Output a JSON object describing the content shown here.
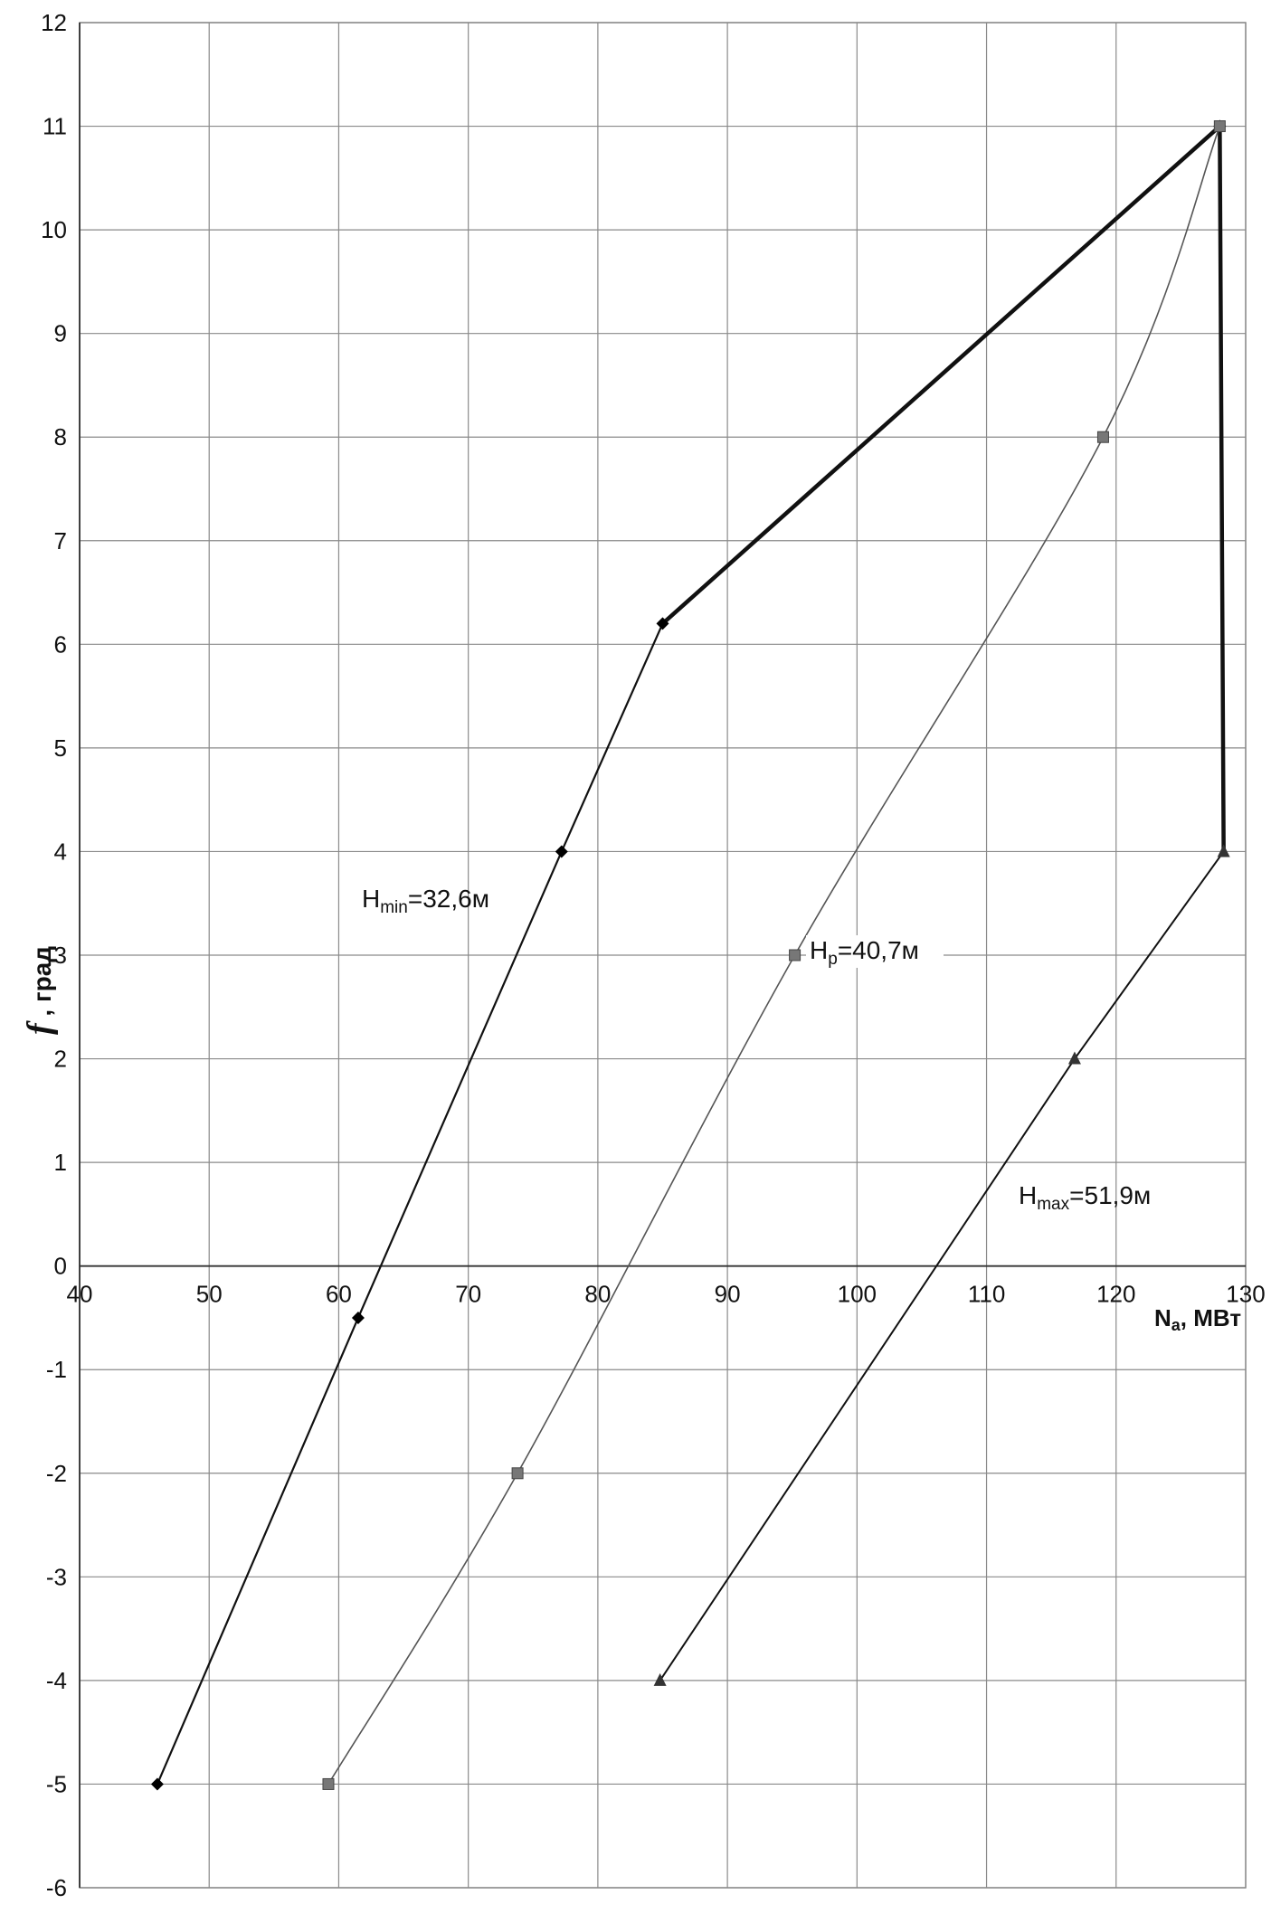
{
  "chart_data": {
    "type": "line",
    "title": "",
    "xlabel": {
      "main": "N",
      "sub": "a",
      "rest": ", МВт"
    },
    "ylabel": {
      "main": "f",
      "rest": " , град"
    },
    "xlim": [
      40,
      130
    ],
    "ylim": [
      -6,
      12
    ],
    "xticks": [
      40,
      50,
      60,
      70,
      80,
      90,
      100,
      110,
      120,
      130
    ],
    "yticks": [
      -6,
      -5,
      -4,
      -3,
      -2,
      -1,
      0,
      1,
      2,
      3,
      4,
      5,
      6,
      7,
      8,
      9,
      10,
      11,
      12
    ],
    "grid": true,
    "legend": "none",
    "series": [
      {
        "name": "Hmin=32,6м",
        "label": {
          "main": "H",
          "sub": "min",
          "rest": "=32,6м"
        },
        "marker": "diamond",
        "points": [
          [
            46.0,
            -5.0
          ],
          [
            61.5,
            -0.5
          ],
          [
            77.2,
            4.0
          ],
          [
            85.0,
            6.2
          ],
          [
            128.0,
            11.0
          ]
        ]
      },
      {
        "name": "Hp=40,7м",
        "label": {
          "main": "H",
          "sub": "p",
          "rest": "=40,7м"
        },
        "marker": "square",
        "points": [
          [
            59.2,
            -5.0
          ],
          [
            73.8,
            -2.0
          ],
          [
            95.2,
            3.0
          ],
          [
            119.0,
            8.0
          ],
          [
            128.0,
            11.0
          ]
        ]
      },
      {
        "name": "Hmax=51,9м",
        "label": {
          "main": "H",
          "sub": "max",
          "rest": "=51,9м"
        },
        "marker": "triangle",
        "points": [
          [
            84.8,
            -4.0
          ],
          [
            116.8,
            2.0
          ],
          [
            128.3,
            4.0
          ]
        ]
      }
    ],
    "envelope": {
      "points": [
        [
          85.0,
          6.2
        ],
        [
          128.0,
          11.0
        ],
        [
          128.3,
          4.0
        ]
      ]
    },
    "colors": {
      "grid": "#8a8a8a",
      "line": "#111111",
      "series_hp": "#555555",
      "marker_square": "#777777"
    }
  }
}
